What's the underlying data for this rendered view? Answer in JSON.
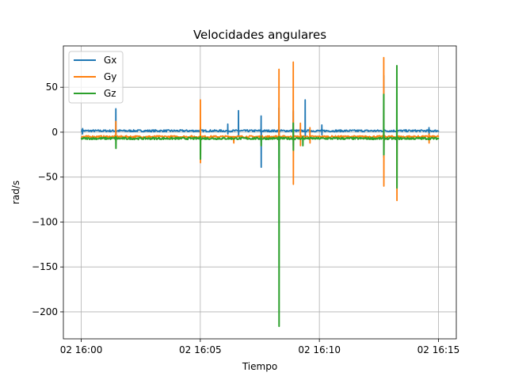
{
  "chart_data": {
    "type": "line",
    "title": "Velocidades angulares",
    "xlabel": "Tiempo",
    "ylabel": "rad/s",
    "grid": true,
    "legend_position": "top-left",
    "xlim": [
      -0.75,
      15.75
    ],
    "ylim": [
      -230,
      96
    ],
    "x_ticks": [
      {
        "value": 0,
        "label": "02 16:00"
      },
      {
        "value": 5,
        "label": "02 16:05"
      },
      {
        "value": 10,
        "label": "02 16:10"
      },
      {
        "value": 15,
        "label": "02 16:15"
      }
    ],
    "y_ticks": [
      {
        "value": 50,
        "label": "50"
      },
      {
        "value": 0,
        "label": "0"
      },
      {
        "value": -50,
        "label": "−50"
      },
      {
        "value": -100,
        "label": "−100"
      },
      {
        "value": -150,
        "label": "−150"
      },
      {
        "value": -200,
        "label": "−200"
      }
    ],
    "x_unit": "minutes after 02 16:00",
    "series": [
      {
        "name": "Gx",
        "color": "#1f77b4",
        "baseline": 1.5,
        "spikes": [
          [
            0.05,
            -2,
            4
          ],
          [
            1.45,
            26,
            -3
          ],
          [
            5.0,
            -25,
            5
          ],
          [
            6.15,
            9,
            -2
          ],
          [
            6.6,
            24,
            -5
          ],
          [
            7.55,
            18,
            -39
          ],
          [
            8.3,
            27,
            -40
          ],
          [
            8.9,
            24,
            -15
          ],
          [
            9.4,
            36,
            -5
          ],
          [
            10.1,
            8,
            -3
          ],
          [
            12.7,
            63,
            -28
          ],
          [
            13.25,
            15,
            -18
          ],
          [
            14.6,
            5,
            -3
          ]
        ]
      },
      {
        "name": "Gy",
        "color": "#ff7f0e",
        "baseline": -5,
        "spikes": [
          [
            1.45,
            12,
            -10
          ],
          [
            5.0,
            36,
            -34
          ],
          [
            6.4,
            -10,
            -12
          ],
          [
            8.3,
            70,
            -15
          ],
          [
            8.9,
            78,
            -58
          ],
          [
            9.2,
            10,
            -15
          ],
          [
            9.6,
            5,
            -12
          ],
          [
            12.7,
            83,
            -60
          ],
          [
            13.25,
            5,
            -76
          ],
          [
            14.6,
            -2,
            -12
          ]
        ]
      },
      {
        "name": "Gz",
        "color": "#2ca02c",
        "baseline": -7,
        "spikes": [
          [
            1.45,
            -5,
            -18
          ],
          [
            5.0,
            -5,
            -30
          ],
          [
            7.55,
            -5,
            -15
          ],
          [
            8.3,
            -5,
            -216
          ],
          [
            8.9,
            10,
            -20
          ],
          [
            9.3,
            -5,
            -15
          ],
          [
            12.7,
            42,
            -25
          ],
          [
            13.25,
            74,
            -62
          ]
        ]
      }
    ]
  }
}
